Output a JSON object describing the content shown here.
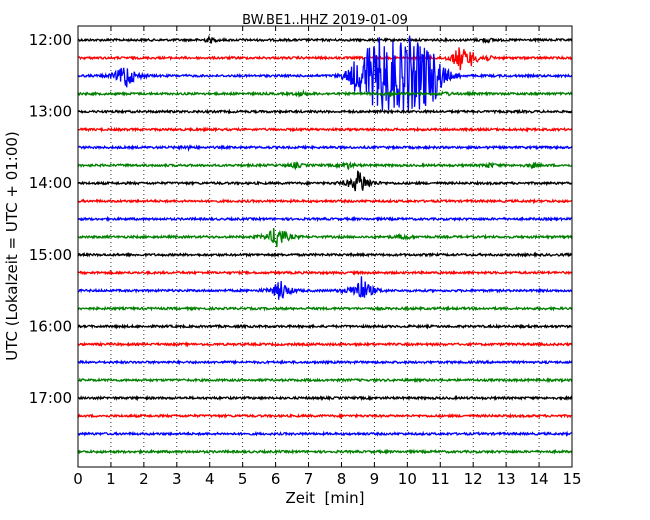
{
  "chart_data": {
    "type": "line",
    "title": "BW.BE1..HHZ 2019-01-09",
    "xlabel": "Zeit  [min]",
    "ylabel": "UTC (Lokalzeit = UTC + 01:00)",
    "xlim": [
      0,
      15
    ],
    "x_ticks": [
      0,
      1,
      2,
      3,
      4,
      5,
      6,
      7,
      8,
      9,
      10,
      11,
      12,
      13,
      14,
      15
    ],
    "x_tick_labels": [
      "0",
      "1",
      "2",
      "3",
      "4",
      "5",
      "6",
      "7",
      "8",
      "9",
      "10",
      "11",
      "12",
      "13",
      "14",
      "15"
    ],
    "y_tick_labels": [
      "12:00",
      "13:00",
      "14:00",
      "15:00",
      "16:00",
      "17:00"
    ],
    "grid": {
      "vertical_dotted": true
    },
    "legend": "none",
    "line_colors": [
      "#000000",
      "#ff0000",
      "#0000ff",
      "#008000"
    ],
    "traces": [
      {
        "time": "12:00",
        "color": "#000000",
        "events": [
          {
            "x": 4.0,
            "amp": 0.3
          },
          {
            "x": 12.4,
            "amp": 0.25
          }
        ]
      },
      {
        "time": "12:15",
        "color": "#ff0000",
        "events": [
          {
            "x": 11.6,
            "amp": 1.4
          },
          {
            "x": 11.95,
            "amp": 0.6
          },
          {
            "x": 12.4,
            "amp": 0.3
          }
        ]
      },
      {
        "time": "12:30",
        "color": "#0000ff",
        "events": [
          {
            "x": 1.45,
            "amp": 1.6
          },
          {
            "x": 8.4,
            "amp": 1.0
          },
          {
            "x": 8.8,
            "amp": 2.5
          },
          {
            "x": 9.2,
            "amp": 3.5
          },
          {
            "x": 9.55,
            "amp": 2.0
          },
          {
            "x": 10.0,
            "amp": 4.0
          },
          {
            "x": 10.5,
            "amp": 3.5
          },
          {
            "x": 10.85,
            "amp": 1.5
          }
        ]
      },
      {
        "time": "12:45",
        "color": "#008000",
        "events": [
          {
            "x": 6.8,
            "amp": 0.25
          },
          {
            "x": 9.5,
            "amp": 0.25
          },
          {
            "x": 11.2,
            "amp": 0.2
          }
        ]
      },
      {
        "time": "13:00",
        "color": "#000000",
        "events": []
      },
      {
        "time": "13:15",
        "color": "#ff0000",
        "events": []
      },
      {
        "time": "13:30",
        "color": "#0000ff",
        "events": [
          {
            "x": 3.3,
            "amp": 0.2
          }
        ]
      },
      {
        "time": "13:45",
        "color": "#008000",
        "events": [
          {
            "x": 6.6,
            "amp": 0.3
          },
          {
            "x": 8.2,
            "amp": 0.35
          },
          {
            "x": 12.5,
            "amp": 0.25
          },
          {
            "x": 13.8,
            "amp": 0.3
          }
        ]
      },
      {
        "time": "14:00",
        "color": "#000000",
        "events": [
          {
            "x": 8.55,
            "amp": 1.6
          }
        ]
      },
      {
        "time": "14:15",
        "color": "#ff0000",
        "events": []
      },
      {
        "time": "14:30",
        "color": "#0000ff",
        "events": []
      },
      {
        "time": "14:45",
        "color": "#008000",
        "events": [
          {
            "x": 6.05,
            "amp": 1.5
          },
          {
            "x": 9.9,
            "amp": 0.3
          }
        ]
      },
      {
        "time": "15:00",
        "color": "#000000",
        "events": []
      },
      {
        "time": "15:15",
        "color": "#ff0000",
        "events": []
      },
      {
        "time": "15:30",
        "color": "#0000ff",
        "events": [
          {
            "x": 6.15,
            "amp": 1.3
          },
          {
            "x": 8.6,
            "amp": 1.7
          }
        ]
      },
      {
        "time": "15:45",
        "color": "#008000",
        "events": []
      },
      {
        "time": "16:00",
        "color": "#000000",
        "events": []
      },
      {
        "time": "16:15",
        "color": "#ff0000",
        "events": []
      },
      {
        "time": "16:30",
        "color": "#0000ff",
        "events": []
      },
      {
        "time": "16:45",
        "color": "#008000",
        "events": []
      },
      {
        "time": "17:00",
        "color": "#000000",
        "events": []
      },
      {
        "time": "17:15",
        "color": "#ff0000",
        "events": []
      },
      {
        "time": "17:30",
        "color": "#0000ff",
        "events": []
      },
      {
        "time": "17:45",
        "color": "#008000",
        "events": []
      }
    ]
  }
}
